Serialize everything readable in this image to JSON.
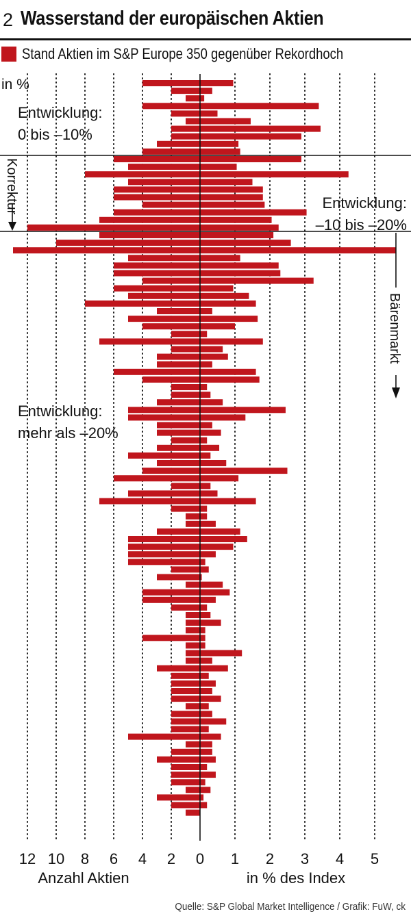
{
  "header": {
    "number": "2",
    "title": "Wasserstand der europäischen Aktien"
  },
  "legend": {
    "label": "Stand Aktien im S&P Europe 350 gegenüber Rekordhoch",
    "color": "#c0161d"
  },
  "source": "Quelle: S&P Global Market Intelligence / Grafik: FuW, ck",
  "chart_data": {
    "type": "bar",
    "title": "Wasserstand der europäischen Aktien",
    "unit_label": "in %",
    "left_axis": {
      "label": "Anzahl Aktien",
      "ticks": [
        12,
        10,
        8,
        6,
        4,
        2,
        0
      ],
      "range": [
        0,
        12.8
      ]
    },
    "right_axis": {
      "label": "in % des Index",
      "ticks": [
        1,
        2,
        3,
        4,
        5
      ],
      "range": [
        0,
        5.7
      ]
    },
    "bands": [
      {
        "label_lines": [
          "Entwicklung:",
          "0 bis –10%"
        ],
        "from_bin": 0,
        "to_bin": 10
      },
      {
        "label_lines": [
          "Entwicklung:",
          "–10 bis –20%"
        ],
        "from_bin": 10,
        "to_bin": 20,
        "side_label": "Korrektur"
      },
      {
        "label_lines": [
          "Entwicklung:",
          "mehr als –20%"
        ],
        "from_bin": 20,
        "to_bin": 96,
        "side_label": "Bärenmarkt"
      }
    ],
    "series": [
      {
        "name": "Anzahl Aktien",
        "side": "left",
        "values": [
          4,
          2,
          1,
          4,
          2,
          1,
          2,
          2,
          3,
          4,
          6,
          5,
          8,
          5,
          6,
          6,
          4,
          6,
          7,
          12,
          7,
          10,
          13,
          5,
          6,
          6,
          4,
          6,
          5,
          8,
          3,
          5,
          4,
          2,
          7,
          2,
          3,
          3,
          6,
          4,
          2,
          2,
          3,
          5,
          5,
          3,
          3,
          2,
          3,
          5,
          3,
          4,
          6,
          2,
          5,
          7,
          2,
          1,
          1,
          3,
          5,
          5,
          5,
          5,
          2,
          3,
          1,
          4,
          4,
          2,
          1,
          1,
          1,
          4,
          1,
          1,
          1,
          3,
          2,
          2,
          2,
          2,
          1,
          2,
          2,
          2,
          5,
          1,
          2,
          3,
          2,
          2,
          2,
          1,
          3,
          2,
          1
        ]
      },
      {
        "name": "in % des Index",
        "side": "right",
        "values": [
          0.95,
          0.35,
          0.12,
          3.4,
          0.5,
          1.45,
          3.45,
          2.9,
          1.1,
          1.15,
          2.9,
          1.05,
          4.25,
          1.5,
          1.8,
          1.8,
          1.85,
          3.05,
          2.05,
          2.25,
          2.1,
          2.6,
          5.6,
          1.15,
          2.25,
          2.3,
          3.25,
          0.95,
          1.4,
          1.6,
          0.35,
          1.65,
          1.0,
          0.2,
          1.8,
          0.65,
          0.8,
          0.35,
          1.6,
          1.7,
          0.2,
          0.3,
          0.65,
          2.45,
          1.3,
          0.35,
          0.6,
          0.2,
          0.55,
          0.3,
          0.75,
          2.5,
          1.1,
          0.3,
          0.5,
          1.6,
          0.2,
          0.2,
          0.45,
          1.15,
          1.35,
          0.95,
          0.45,
          0.15,
          0.25,
          0.05,
          0.65,
          0.85,
          0.45,
          0.2,
          0.3,
          0.6,
          0.15,
          0.15,
          0.15,
          1.2,
          0.35,
          0.8,
          0.25,
          0.45,
          0.35,
          0.6,
          0.25,
          0.35,
          0.75,
          0.25,
          0.6,
          0.35,
          0.35,
          0.45,
          0.2,
          0.45,
          0.15,
          0.3,
          0.1,
          0.2
        ]
      }
    ]
  }
}
